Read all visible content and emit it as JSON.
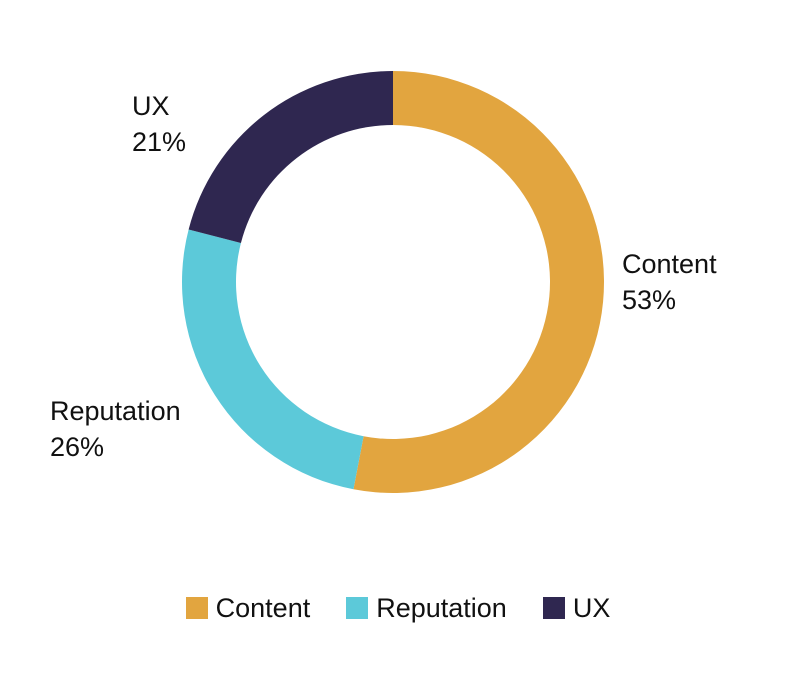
{
  "chart_data": {
    "type": "pie",
    "style": "donut",
    "legend_position": "bottom",
    "slices": [
      {
        "label": "Content",
        "value": 53,
        "value_label": "53%",
        "color": "#E2A53F"
      },
      {
        "label": "Reputation",
        "value": 26,
        "value_label": "26%",
        "color": "#5CC9D9"
      },
      {
        "label": "UX",
        "value": 21,
        "value_label": "21%",
        "color": "#2F2750"
      }
    ]
  }
}
